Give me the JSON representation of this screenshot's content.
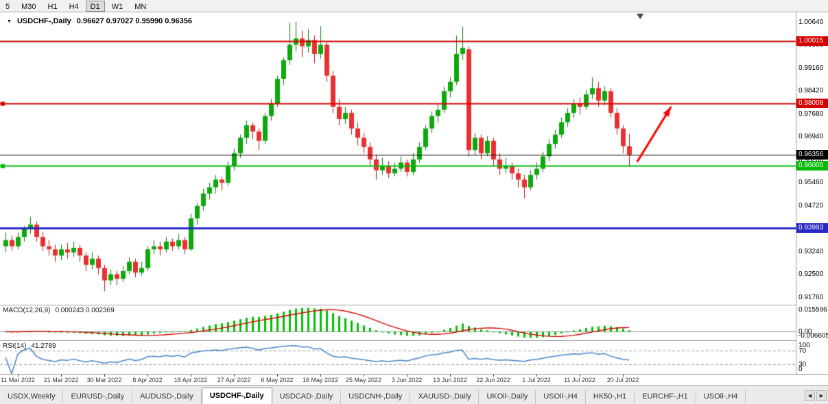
{
  "toolbar": {
    "timeframes": [
      {
        "label": "5",
        "active": false
      },
      {
        "label": "M30",
        "active": false
      },
      {
        "label": "H1",
        "active": false
      },
      {
        "label": "H4",
        "active": false
      },
      {
        "label": "D1",
        "active": true
      },
      {
        "label": "W1",
        "active": false
      },
      {
        "label": "MN",
        "active": false
      }
    ]
  },
  "chart": {
    "title": "USDCHF-,Daily",
    "ohlc_text": "0.96627 0.97027 0.95990 0.96356",
    "macd_label": "MACD(12,26,9)",
    "macd_values": "0.000243 0.002369",
    "rsi_label": "RSI(14)",
    "rsi_value": "41.2789"
  },
  "colors": {
    "up": "#0ca80c",
    "up_border": "#067a06",
    "down": "#e83030",
    "down_border": "#b51515",
    "macd_hist": "#00c000",
    "macd_signal": "#d40000",
    "rsi_line": "#4682c8",
    "rsi_level": "#999999",
    "zero_line": "#999999",
    "arrow": "#ff0000",
    "shift_marker": "#444444"
  },
  "chart_data": {
    "type": "candlestick",
    "symbol": "USDCHF-",
    "timeframe": "Daily",
    "current_open": 0.96627,
    "current_high": 0.97027,
    "current_low": 0.9599,
    "current_close": 0.96356,
    "y_axis_labels": [
      "1.00640",
      "0.99900",
      "0.99160",
      "0.98420",
      "0.97680",
      "0.96940",
      "0.96200",
      "0.95460",
      "0.94720",
      "0.93980",
      "0.93240",
      "0.92500",
      "0.91760"
    ],
    "macd_axis_labels": [
      "0.015596",
      "0.00",
      "-0.006605"
    ],
    "rsi_axis_labels": [
      "100",
      "70",
      "30",
      "0"
    ],
    "rsi_levels": [
      70,
      30
    ],
    "indicators": {
      "macd": {
        "fast": 12,
        "slow": 26,
        "signal": 9
      },
      "rsi": {
        "period": 14
      }
    },
    "price_lines": [
      {
        "price": 1.00015,
        "label": "1.00015",
        "color": "#d60000",
        "width": 2,
        "handle": false
      },
      {
        "price": 0.98008,
        "label": "0.98008",
        "color": "#d60000",
        "width": 2,
        "handle": true
      },
      {
        "price": 0.93993,
        "label": "0.93993",
        "color": "#2929c8",
        "width": 3,
        "handle": false
      },
      {
        "price": 0.96,
        "label": "0.96000",
        "color": "#00bb00",
        "width": 2,
        "handle": true
      },
      {
        "price": 0.96356,
        "label": "0.96356",
        "color": "#000000",
        "width": 1,
        "handle": false
      }
    ],
    "arrow": {
      "from_index": 102.3,
      "from_price": 0.9612,
      "to_index": 107.8,
      "to_price": 0.979
    },
    "shift_marker_index": 102.8,
    "x_labels": [
      {
        "index": 2,
        "text": "11 Mar 2022"
      },
      {
        "index": 9,
        "text": "21 Mar 2022"
      },
      {
        "index": 16,
        "text": "30 Mar 2022"
      },
      {
        "index": 23,
        "text": "8 Apr 2022"
      },
      {
        "index": 30,
        "text": "18 Apr 2022"
      },
      {
        "index": 37,
        "text": "27 Apr 2022"
      },
      {
        "index": 44,
        "text": "6 May 2022"
      },
      {
        "index": 51,
        "text": "16 May 2022"
      },
      {
        "index": 58,
        "text": "25 May 2022"
      },
      {
        "index": 65,
        "text": "3 Jun 2022"
      },
      {
        "index": 72,
        "text": "13 Jun 2022"
      },
      {
        "index": 79,
        "text": "22 Jun 2022"
      },
      {
        "index": 86,
        "text": "1 Jul 2022"
      },
      {
        "index": 93,
        "text": "11 Jul 2022"
      },
      {
        "index": 100,
        "text": "20 Jul 2022"
      }
    ],
    "ohlc": [
      [
        0.934,
        0.9385,
        0.932,
        0.936
      ],
      [
        0.936,
        0.9375,
        0.9325,
        0.934
      ],
      [
        0.934,
        0.9385,
        0.933,
        0.937
      ],
      [
        0.937,
        0.9405,
        0.9355,
        0.9395
      ],
      [
        0.9395,
        0.9435,
        0.938,
        0.941
      ],
      [
        0.941,
        0.942,
        0.9355,
        0.937
      ],
      [
        0.937,
        0.9385,
        0.9325,
        0.934
      ],
      [
        0.934,
        0.936,
        0.931,
        0.933
      ],
      [
        0.933,
        0.9345,
        0.929,
        0.931
      ],
      [
        0.931,
        0.9345,
        0.9295,
        0.933
      ],
      [
        0.933,
        0.935,
        0.93,
        0.932
      ],
      [
        0.932,
        0.9355,
        0.9305,
        0.9335
      ],
      [
        0.9335,
        0.9345,
        0.929,
        0.931
      ],
      [
        0.931,
        0.932,
        0.926,
        0.928
      ],
      [
        0.928,
        0.932,
        0.9265,
        0.93
      ],
      [
        0.93,
        0.931,
        0.925,
        0.927
      ],
      [
        0.927,
        0.928,
        0.9195,
        0.923
      ],
      [
        0.923,
        0.9265,
        0.9215,
        0.925
      ],
      [
        0.925,
        0.926,
        0.9215,
        0.9235
      ],
      [
        0.9235,
        0.9275,
        0.9225,
        0.926
      ],
      [
        0.926,
        0.9305,
        0.925,
        0.929
      ],
      [
        0.929,
        0.93,
        0.924,
        0.9255
      ],
      [
        0.9255,
        0.929,
        0.9245,
        0.927
      ],
      [
        0.927,
        0.934,
        0.926,
        0.933
      ],
      [
        0.933,
        0.936,
        0.9315,
        0.934
      ],
      [
        0.934,
        0.9355,
        0.931,
        0.933
      ],
      [
        0.933,
        0.937,
        0.932,
        0.9355
      ],
      [
        0.9355,
        0.9365,
        0.9325,
        0.934
      ],
      [
        0.934,
        0.938,
        0.933,
        0.936
      ],
      [
        0.936,
        0.937,
        0.9315,
        0.933
      ],
      [
        0.933,
        0.9445,
        0.9325,
        0.943
      ],
      [
        0.943,
        0.948,
        0.941,
        0.947
      ],
      [
        0.947,
        0.9525,
        0.9455,
        0.951
      ],
      [
        0.951,
        0.9545,
        0.949,
        0.953
      ],
      [
        0.953,
        0.957,
        0.951,
        0.9555
      ],
      [
        0.9555,
        0.9565,
        0.952,
        0.9545
      ],
      [
        0.9545,
        0.9615,
        0.9535,
        0.96
      ],
      [
        0.96,
        0.9655,
        0.9585,
        0.964
      ],
      [
        0.964,
        0.97,
        0.9625,
        0.969
      ],
      [
        0.969,
        0.9745,
        0.967,
        0.973
      ],
      [
        0.973,
        0.974,
        0.9685,
        0.971
      ],
      [
        0.971,
        0.972,
        0.965,
        0.968
      ],
      [
        0.968,
        0.977,
        0.967,
        0.976
      ],
      [
        0.976,
        0.9815,
        0.9745,
        0.98
      ],
      [
        0.98,
        0.989,
        0.979,
        0.988
      ],
      [
        0.988,
        0.995,
        0.986,
        0.994
      ],
      [
        0.994,
        1.006,
        0.9925,
        0.999
      ],
      [
        0.999,
        1.0064,
        0.997,
        1.001
      ],
      [
        1.001,
        1.0035,
        0.995,
        0.9985
      ],
      [
        0.9985,
        1.004,
        0.9965,
        1.0005
      ],
      [
        1.0005,
        1.002,
        0.993,
        0.996
      ],
      [
        0.996,
        1.005,
        0.9945,
        0.999
      ],
      [
        0.999,
        1.0,
        0.987,
        0.989
      ],
      [
        0.989,
        0.9905,
        0.977,
        0.979
      ],
      [
        0.979,
        0.9815,
        0.973,
        0.975
      ],
      [
        0.975,
        0.979,
        0.9735,
        0.977
      ],
      [
        0.977,
        0.978,
        0.97,
        0.972
      ],
      [
        0.972,
        0.974,
        0.9665,
        0.969
      ],
      [
        0.969,
        0.9705,
        0.964,
        0.966
      ],
      [
        0.966,
        0.9675,
        0.96,
        0.962
      ],
      [
        0.962,
        0.9635,
        0.9555,
        0.9585
      ],
      [
        0.9585,
        0.9625,
        0.957,
        0.96
      ],
      [
        0.96,
        0.9615,
        0.956,
        0.9575
      ],
      [
        0.9575,
        0.961,
        0.9565,
        0.959
      ],
      [
        0.959,
        0.963,
        0.958,
        0.961
      ],
      [
        0.961,
        0.962,
        0.9565,
        0.958
      ],
      [
        0.958,
        0.964,
        0.957,
        0.962
      ],
      [
        0.962,
        0.9675,
        0.961,
        0.966
      ],
      [
        0.966,
        0.973,
        0.965,
        0.972
      ],
      [
        0.972,
        0.9775,
        0.9705,
        0.976
      ],
      [
        0.976,
        0.98,
        0.974,
        0.978
      ],
      [
        0.978,
        0.9855,
        0.977,
        0.984
      ],
      [
        0.984,
        0.9885,
        0.982,
        0.987
      ],
      [
        0.987,
        1.002,
        0.986,
        0.996
      ],
      [
        0.996,
        1.0049,
        0.994,
        0.998
      ],
      [
        0.9975,
        0.9985,
        0.963,
        0.965
      ],
      [
        0.965,
        0.9705,
        0.9635,
        0.969
      ],
      [
        0.969,
        0.97,
        0.962,
        0.964
      ],
      [
        0.964,
        0.9695,
        0.963,
        0.968
      ],
      [
        0.968,
        0.969,
        0.96,
        0.962
      ],
      [
        0.962,
        0.964,
        0.957,
        0.959
      ],
      [
        0.959,
        0.9625,
        0.9575,
        0.96
      ],
      [
        0.96,
        0.961,
        0.9555,
        0.9575
      ],
      [
        0.9575,
        0.959,
        0.953,
        0.9555
      ],
      [
        0.9555,
        0.957,
        0.9495,
        0.953
      ],
      [
        0.953,
        0.9585,
        0.952,
        0.957
      ],
      [
        0.957,
        0.961,
        0.9555,
        0.959
      ],
      [
        0.959,
        0.9645,
        0.958,
        0.963
      ],
      [
        0.963,
        0.9685,
        0.9615,
        0.967
      ],
      [
        0.967,
        0.9715,
        0.9655,
        0.97
      ],
      [
        0.97,
        0.9755,
        0.969,
        0.974
      ],
      [
        0.974,
        0.9785,
        0.9725,
        0.977
      ],
      [
        0.977,
        0.9815,
        0.9755,
        0.98
      ],
      [
        0.98,
        0.982,
        0.9765,
        0.979
      ],
      [
        0.979,
        0.9845,
        0.978,
        0.983
      ],
      [
        0.983,
        0.9885,
        0.9815,
        0.985
      ],
      [
        0.985,
        0.987,
        0.979,
        0.981
      ],
      [
        0.981,
        0.9855,
        0.9795,
        0.984
      ],
      [
        0.984,
        0.985,
        0.9755,
        0.977
      ],
      [
        0.977,
        0.9785,
        0.97,
        0.972
      ],
      [
        0.972,
        0.973,
        0.964,
        0.9663
      ],
      [
        0.96627,
        0.97027,
        0.9599,
        0.96356
      ]
    ]
  },
  "tabs": {
    "scroll_left": "◀",
    "scroll_right": "▶",
    "items": [
      {
        "label": "USDX,Weekly",
        "active": false
      },
      {
        "label": "EURUSD-,Daily",
        "active": false
      },
      {
        "label": "AUDUSD-,Daily",
        "active": false
      },
      {
        "label": "USDCHF-,Daily",
        "active": true
      },
      {
        "label": "USDCAD-,Daily",
        "active": false
      },
      {
        "label": "USDCNH-,Daily",
        "active": false
      },
      {
        "label": "XAUUSD-,Daily",
        "active": false
      },
      {
        "label": "UKOil-,Daily",
        "active": false
      },
      {
        "label": "USOil-,H4",
        "active": false
      },
      {
        "label": "HK50-,H1",
        "active": false
      },
      {
        "label": "EURCHF-,H1",
        "active": false
      },
      {
        "label": "USOil-,H4",
        "active": false
      }
    ]
  }
}
